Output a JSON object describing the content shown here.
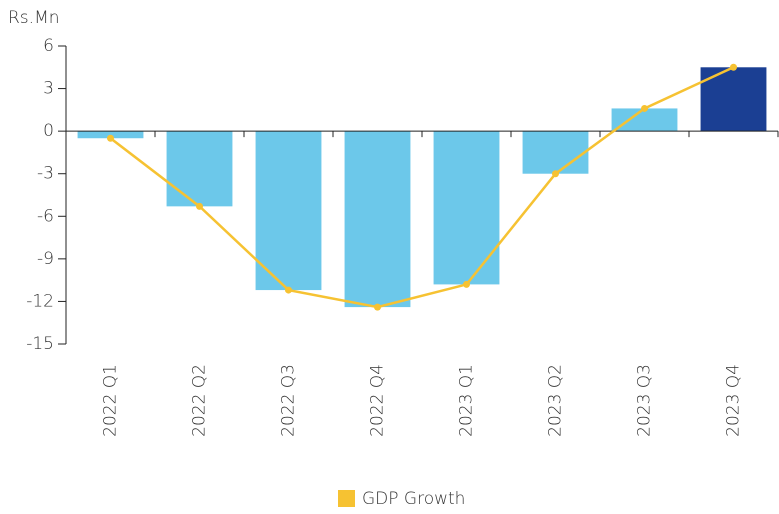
{
  "chart_data": {
    "type": "bar-line",
    "y_label": "Rs.Mn",
    "categories": [
      "2022 Q1",
      "2022 Q2",
      "2022 Q3",
      "2022 Q4",
      "2023 Q1",
      "2023 Q2",
      "2023 Q3",
      "2023 Q4"
    ],
    "series": [
      {
        "type": "bar",
        "values": [
          -0.5,
          -5.3,
          -11.2,
          -12.4,
          -10.8,
          -3.0,
          1.6,
          4.5
        ],
        "colors": [
          "#6cc8ea",
          "#6cc8ea",
          "#6cc8ea",
          "#6cc8ea",
          "#6cc8ea",
          "#6cc8ea",
          "#6cc8ea",
          "#1b3f93"
        ]
      },
      {
        "type": "line",
        "name": "GDP Growth",
        "color": "#f6c232",
        "values": [
          -0.5,
          -5.3,
          -11.2,
          -12.4,
          -10.8,
          -3.0,
          1.6,
          4.5
        ]
      }
    ],
    "ylim": [
      -15,
      6
    ],
    "yticks": [
      6,
      3,
      0,
      -3,
      -6,
      -9,
      -12,
      -15
    ],
    "legend": "bottom"
  }
}
